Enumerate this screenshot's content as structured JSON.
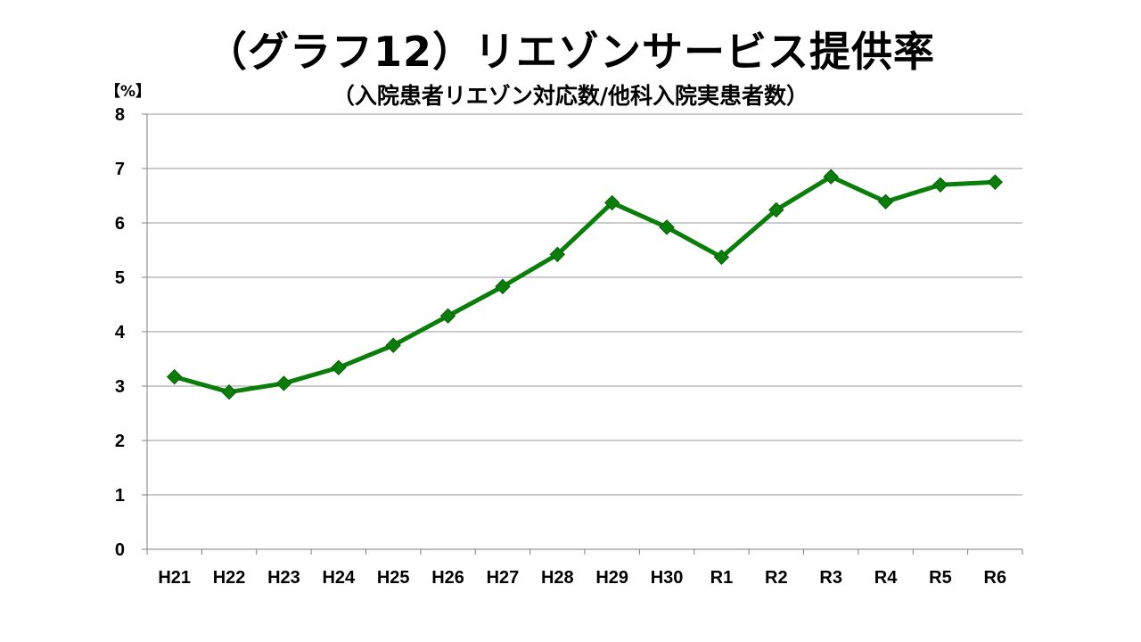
{
  "chart_data": {
    "type": "line",
    "title": "（グラフ12）リエゾンサービス提供率",
    "subtitle": "（入院患者リエゾン対応数/他科入院実患者数）",
    "unit_label": "【%】",
    "categories": [
      "H21",
      "H22",
      "H23",
      "H24",
      "H25",
      "H26",
      "H27",
      "H28",
      "H29",
      "H30",
      "R1",
      "R2",
      "R3",
      "R4",
      "R5",
      "R6"
    ],
    "series": [
      {
        "values": [
          3.17,
          2.89,
          3.05,
          3.34,
          3.75,
          4.29,
          4.83,
          5.42,
          6.37,
          5.92,
          5.37,
          6.24,
          6.85,
          6.39,
          6.7,
          6.75
        ]
      }
    ],
    "ylim": [
      0,
      8
    ],
    "yticks": [
      0,
      1,
      2,
      3,
      4,
      5,
      6,
      7,
      8
    ],
    "grid": true,
    "legend": "none",
    "colors": {
      "line": "#0a7d0a",
      "marker": "#0a7d0a",
      "grid": "#9a9a9a",
      "axis": "#7f7f7f"
    }
  }
}
